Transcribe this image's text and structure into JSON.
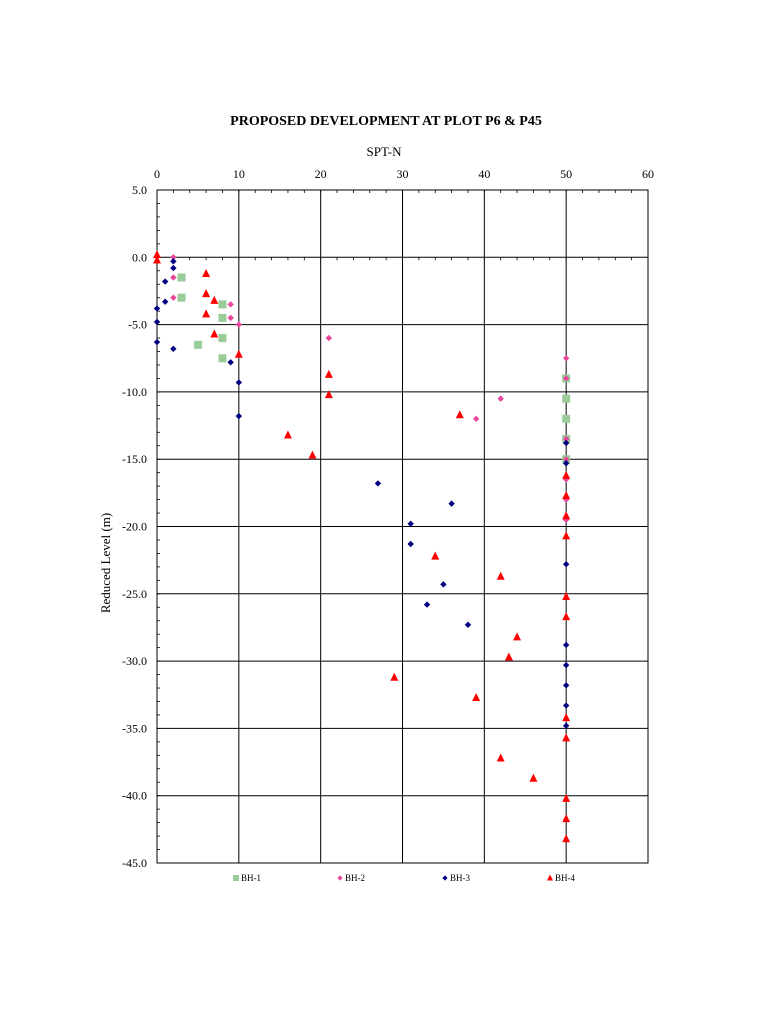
{
  "chart_data": {
    "type": "scatter",
    "title": "PROPOSED DEVELOPMENT AT PLOT P6 & P45",
    "xlabel": "SPT-N",
    "ylabel": "Reduced Level (m)",
    "x_axis_position": "top",
    "xlim": [
      0,
      60
    ],
    "ylim": [
      -45,
      5
    ],
    "x_ticks": [
      0,
      10,
      20,
      30,
      40,
      50,
      60
    ],
    "y_ticks": [
      5.0,
      0.0,
      -5.0,
      -10.0,
      -15.0,
      -20.0,
      -25.0,
      -30.0,
      -35.0,
      -40.0,
      -45.0
    ],
    "x_tick_labels": [
      "0",
      "10",
      "20",
      "30",
      "40",
      "50",
      "60"
    ],
    "y_tick_labels": [
      "5.0",
      "0.0",
      "-5.0",
      "-10.0",
      "-15.0",
      "-20.0",
      "-25.0",
      "-30.0",
      "-35.0",
      "-40.0",
      "-45.0"
    ],
    "grid": true,
    "legend_position": "bottom",
    "series": [
      {
        "name": "BH-1",
        "marker": "square",
        "color": "#99cc99",
        "points": [
          [
            3,
            -1.5
          ],
          [
            3,
            -3.0
          ],
          [
            8,
            -3.5
          ],
          [
            8,
            -4.5
          ],
          [
            8,
            -6.0
          ],
          [
            5,
            -6.5
          ],
          [
            8,
            -7.5
          ],
          [
            50,
            -9.0
          ],
          [
            50,
            -10.5
          ],
          [
            50,
            -12.0
          ],
          [
            50,
            -13.5
          ],
          [
            50,
            -15.0
          ]
        ]
      },
      {
        "name": "BH-2",
        "marker": "diamond",
        "color": "#e8479b",
        "points": [
          [
            2,
            0.0
          ],
          [
            2,
            -1.5
          ],
          [
            2,
            -3.0
          ],
          [
            9,
            -3.5
          ],
          [
            9,
            -4.5
          ],
          [
            10,
            -5.0
          ],
          [
            21,
            -6.0
          ],
          [
            50,
            -7.5
          ],
          [
            50,
            -9.0
          ],
          [
            42,
            -10.5
          ],
          [
            39,
            -12.0
          ],
          [
            50,
            -13.5
          ],
          [
            50,
            -15.0
          ],
          [
            50,
            -16.5
          ],
          [
            50,
            -18.0
          ],
          [
            50,
            -19.5
          ]
        ]
      },
      {
        "name": "BH-3",
        "marker": "diamond",
        "color": "#000080",
        "points": [
          [
            2,
            -0.3
          ],
          [
            2,
            -0.8
          ],
          [
            1,
            -1.8
          ],
          [
            1,
            -3.3
          ],
          [
            0,
            -3.8
          ],
          [
            0,
            -4.8
          ],
          [
            0,
            -6.3
          ],
          [
            2,
            -6.8
          ],
          [
            9,
            -7.8
          ],
          [
            10,
            -9.3
          ],
          [
            10,
            -11.8
          ],
          [
            50,
            -13.8
          ],
          [
            50,
            -15.3
          ],
          [
            27,
            -16.8
          ],
          [
            36,
            -18.3
          ],
          [
            31,
            -19.8
          ],
          [
            31,
            -21.3
          ],
          [
            50,
            -22.8
          ],
          [
            35,
            -24.3
          ],
          [
            33,
            -25.8
          ],
          [
            38,
            -27.3
          ],
          [
            50,
            -28.8
          ],
          [
            50,
            -30.3
          ],
          [
            50,
            -31.8
          ],
          [
            50,
            -33.3
          ],
          [
            50,
            -34.8
          ]
        ]
      },
      {
        "name": "BH-4",
        "marker": "triangle",
        "color": "#ff0000",
        "points": [
          [
            0,
            0.2
          ],
          [
            0,
            -0.2
          ],
          [
            6,
            -1.2
          ],
          [
            6,
            -2.7
          ],
          [
            7,
            -3.2
          ],
          [
            6,
            -4.2
          ],
          [
            7,
            -5.7
          ],
          [
            10,
            -7.2
          ],
          [
            21,
            -8.7
          ],
          [
            21,
            -10.2
          ],
          [
            37,
            -11.7
          ],
          [
            16,
            -13.2
          ],
          [
            19,
            -14.7
          ],
          [
            50,
            -16.2
          ],
          [
            50,
            -17.7
          ],
          [
            50,
            -19.2
          ],
          [
            50,
            -20.7
          ],
          [
            34,
            -22.2
          ],
          [
            42,
            -23.7
          ],
          [
            50,
            -25.2
          ],
          [
            50,
            -26.7
          ],
          [
            44,
            -28.2
          ],
          [
            43,
            -29.7
          ],
          [
            29,
            -31.2
          ],
          [
            39,
            -32.7
          ],
          [
            50,
            -34.2
          ],
          [
            50,
            -35.7
          ],
          [
            42,
            -37.2
          ],
          [
            46,
            -38.7
          ],
          [
            50,
            -40.2
          ],
          [
            50,
            -41.7
          ],
          [
            50,
            -43.2
          ]
        ]
      }
    ]
  }
}
